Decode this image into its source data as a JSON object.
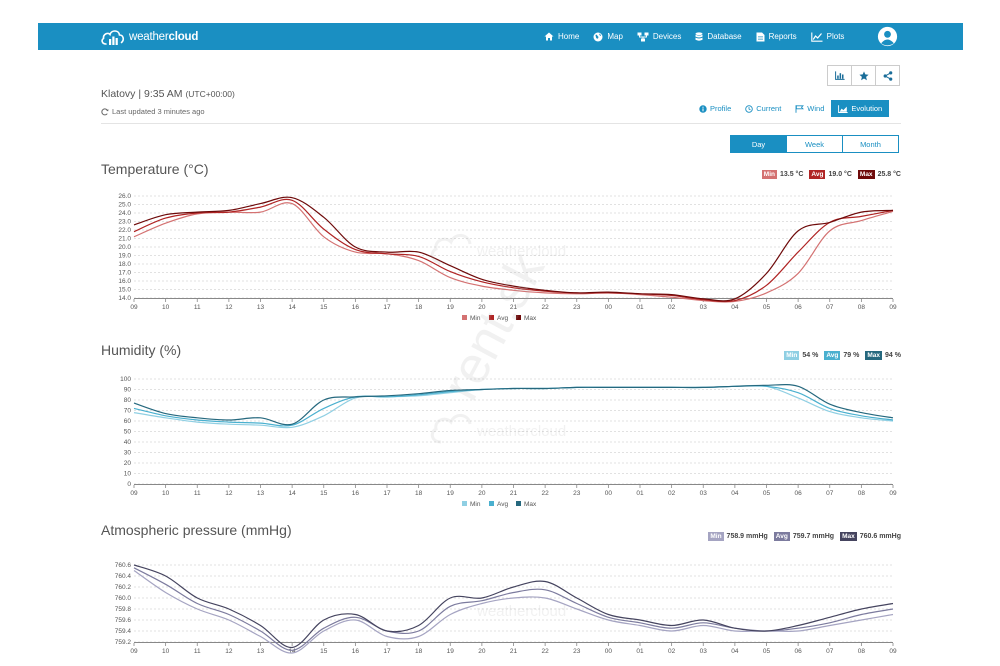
{
  "navbar": {
    "logo": {
      "light": "weather",
      "bold": "cloud"
    },
    "items": [
      {
        "label": "Home",
        "icon": "home-icon"
      },
      {
        "label": "Map",
        "icon": "globe-icon"
      },
      {
        "label": "Devices",
        "icon": "devices-icon"
      },
      {
        "label": "Database",
        "icon": "database-icon"
      },
      {
        "label": "Reports",
        "icon": "document-icon"
      },
      {
        "label": "Plots",
        "icon": "line-chart-icon"
      }
    ],
    "avatar_icon": "user-avatar-icon",
    "color": "#1a8fc2"
  },
  "station": {
    "name": "Klatovy | 9:35 AM",
    "timezone": "(UTC+00:00)",
    "last_updated": "Last updated 3 minutes ago"
  },
  "action_icons": [
    "bar-chart-icon",
    "star-icon",
    "share-icon"
  ],
  "view_tabs": [
    {
      "label": "Profile",
      "icon": "info-icon",
      "active": false
    },
    {
      "label": "Current",
      "icon": "clock-icon",
      "active": false
    },
    {
      "label": "Wind",
      "icon": "flag-icon",
      "active": false
    },
    {
      "label": "Evolution",
      "icon": "area-chart-icon",
      "active": true
    }
  ],
  "period_tabs": [
    {
      "label": "Day",
      "active": true
    },
    {
      "label": "Week",
      "active": false
    },
    {
      "label": "Month",
      "active": false
    }
  ],
  "watermark": {
    "brand": "weathercloud",
    "overlay": "rent.sk"
  },
  "charts": {
    "temperature": {
      "title": "Temperature (°C)",
      "stats": [
        {
          "label": "Min",
          "value": "13.5 °C",
          "color": "#d47272"
        },
        {
          "label": "Avg",
          "value": "19.0 °C",
          "color": "#b02424"
        },
        {
          "label": "Max",
          "value": "25.8 °C",
          "color": "#6e0a0a"
        }
      ]
    },
    "humidity": {
      "title": "Humidity (%)",
      "stats": [
        {
          "label": "Min",
          "value": "54 %",
          "color": "#8fcfe3"
        },
        {
          "label": "Avg",
          "value": "79 %",
          "color": "#4ab0cf"
        },
        {
          "label": "Max",
          "value": "94 %",
          "color": "#25687e"
        }
      ]
    },
    "pressure": {
      "title": "Atmospheric pressure (mmHg)",
      "stats": [
        {
          "label": "Min",
          "value": "758.9 mmHg",
          "color": "#a5a4c2"
        },
        {
          "label": "Avg",
          "value": "759.7 mmHg",
          "color": "#7c7b9e"
        },
        {
          "label": "Max",
          "value": "760.6 mmHg",
          "color": "#45445f"
        }
      ]
    }
  },
  "chart_data": [
    {
      "type": "line",
      "x": [
        "09",
        "10",
        "11",
        "12",
        "13",
        "14",
        "15",
        "16",
        "17",
        "18",
        "19",
        "20",
        "21",
        "22",
        "23",
        "00",
        "01",
        "02",
        "03",
        "04",
        "05",
        "06",
        "07",
        "08",
        "09"
      ],
      "ylim": [
        14.0,
        26.0
      ],
      "yticks": [
        "14.0",
        "15.0",
        "16.0",
        "17.0",
        "18.0",
        "19.0",
        "20.0",
        "21.0",
        "22.0",
        "23.0",
        "24.0",
        "25.0",
        "26.0"
      ],
      "grid": true,
      "legend_position": "bottom",
      "series": [
        {
          "name": "Min",
          "color": "#d47272",
          "values": [
            21.2,
            22.8,
            23.9,
            24.1,
            24.1,
            25.1,
            21.2,
            19.4,
            19.2,
            18.4,
            16.4,
            15.4,
            14.9,
            14.6,
            14.5,
            14.6,
            14.4,
            14.1,
            13.7,
            13.6,
            14.6,
            16.9,
            21.9,
            23.1,
            24.2
          ]
        },
        {
          "name": "Avg",
          "color": "#b02424",
          "values": [
            21.8,
            23.4,
            24.0,
            24.1,
            24.7,
            25.5,
            22.1,
            19.7,
            19.2,
            18.9,
            17.1,
            15.9,
            15.2,
            14.8,
            14.6,
            14.6,
            14.5,
            14.3,
            13.8,
            13.7,
            15.5,
            19.4,
            22.9,
            23.6,
            24.3
          ]
        },
        {
          "name": "Max",
          "color": "#6e0a0a",
          "values": [
            22.6,
            23.8,
            24.1,
            24.3,
            25.1,
            25.8,
            23.5,
            20.0,
            19.4,
            19.4,
            17.8,
            16.2,
            15.4,
            14.9,
            14.6,
            14.7,
            14.5,
            14.4,
            13.9,
            13.9,
            16.9,
            21.9,
            22.9,
            24.1,
            24.3
          ]
        }
      ]
    },
    {
      "type": "line",
      "x": [
        "09",
        "10",
        "11",
        "12",
        "13",
        "14",
        "15",
        "16",
        "17",
        "18",
        "19",
        "20",
        "21",
        "22",
        "23",
        "00",
        "01",
        "02",
        "03",
        "04",
        "05",
        "06",
        "07",
        "08",
        "09"
      ],
      "ylim": [
        0,
        100
      ],
      "yticks": [
        "0",
        "10",
        "20",
        "30",
        "40",
        "50",
        "60",
        "70",
        "80",
        "90",
        "100"
      ],
      "grid": true,
      "legend_position": "bottom",
      "series": [
        {
          "name": "Min",
          "color": "#8fcfe3",
          "values": [
            68,
            63,
            59,
            57,
            56,
            54,
            65,
            82,
            83,
            84,
            87,
            90,
            91,
            91,
            92,
            92,
            92,
            92,
            92,
            93,
            93,
            82,
            69,
            63,
            60
          ]
        },
        {
          "name": "Avg",
          "color": "#4ab0cf",
          "values": [
            72,
            65,
            61,
            59,
            58,
            56,
            72,
            83,
            83,
            85,
            88,
            90,
            91,
            91,
            92,
            92,
            92,
            92,
            92,
            93,
            93,
            87,
            72,
            65,
            61
          ]
        },
        {
          "name": "Max",
          "color": "#25687e",
          "values": [
            77,
            67,
            63,
            61,
            63,
            57,
            80,
            83,
            84,
            86,
            89,
            90,
            91,
            91,
            92,
            92,
            92,
            92,
            92,
            93,
            94,
            93,
            76,
            68,
            63
          ]
        }
      ]
    },
    {
      "type": "line",
      "x": [
        "09",
        "10",
        "11",
        "12",
        "13",
        "14",
        "15",
        "16",
        "17",
        "18",
        "19",
        "20",
        "21",
        "22",
        "23",
        "00",
        "01",
        "02",
        "03",
        "04",
        "05",
        "06",
        "07",
        "08",
        "09"
      ],
      "ylim": [
        759.2,
        760.6
      ],
      "yticks": [
        "759.2",
        "759.4",
        "759.6",
        "759.8",
        "760.0",
        "760.2",
        "760.4",
        "760.6"
      ],
      "grid": true,
      "legend_position": "bottom",
      "series": [
        {
          "name": "Min",
          "color": "#a5a4c2",
          "values": [
            760.5,
            760.1,
            759.8,
            759.6,
            759.3,
            759.0,
            759.4,
            759.6,
            759.3,
            759.3,
            759.7,
            759.9,
            760.0,
            760.0,
            759.8,
            759.6,
            759.5,
            759.4,
            759.5,
            759.4,
            759.4,
            759.4,
            759.5,
            759.6,
            759.7
          ]
        },
        {
          "name": "Avg",
          "color": "#7c7b9e",
          "values": [
            760.55,
            760.25,
            759.9,
            759.7,
            759.4,
            759.05,
            759.45,
            759.65,
            759.4,
            759.4,
            759.85,
            759.95,
            760.1,
            760.15,
            759.9,
            759.65,
            759.55,
            759.45,
            759.55,
            759.45,
            759.4,
            759.45,
            759.55,
            759.7,
            759.8
          ]
        },
        {
          "name": "Max",
          "color": "#45445f",
          "values": [
            760.6,
            760.4,
            760.0,
            759.8,
            759.5,
            759.1,
            759.6,
            759.7,
            759.4,
            759.5,
            760.0,
            760.0,
            760.2,
            760.3,
            760.0,
            759.7,
            759.6,
            759.5,
            759.6,
            759.45,
            759.4,
            759.5,
            759.65,
            759.8,
            759.9
          ]
        }
      ]
    }
  ]
}
